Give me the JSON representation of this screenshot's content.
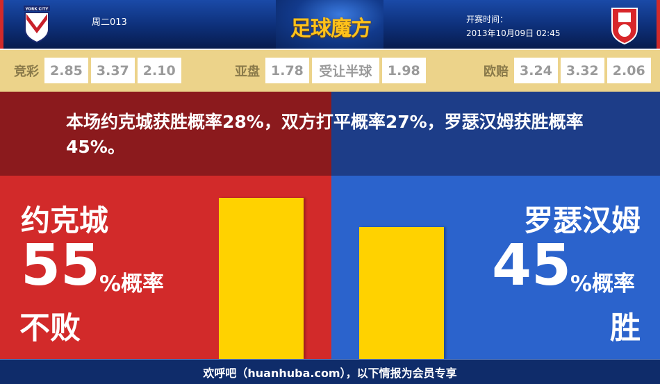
{
  "header": {
    "match_no": "周二013",
    "logo": "足球魔方",
    "kickoff_label": "开赛时间：",
    "kickoff_value": "2013年10月09日 02:45",
    "home_badge_text": "YORK CITY"
  },
  "odds": {
    "jingcai": {
      "label": "竞彩",
      "values": [
        "2.85",
        "3.37",
        "2.10"
      ]
    },
    "yapan": {
      "label": "亚盘",
      "values": [
        "1.78",
        "受让半球",
        "1.98"
      ]
    },
    "oupei": {
      "label": "欧赔",
      "values": [
        "3.24",
        "3.32",
        "2.06"
      ]
    }
  },
  "summary": "本场约克城获胜概率28%，双方打平概率27%，罗瑟汉姆获胜概率45%。",
  "home": {
    "name": "约克城",
    "percent": "55",
    "percent_value": 55,
    "suffix": "%概率",
    "outcome": "不败"
  },
  "away": {
    "name": "罗瑟汉姆",
    "percent": "45",
    "percent_value": 45,
    "suffix": "%概率",
    "outcome": "胜"
  },
  "colors": {
    "home_dark": "#8b1a1d",
    "home": "#d22a2a",
    "away_dark": "#1d3d88",
    "away": "#2b63cc",
    "bar": "#ffd200"
  },
  "footer": "欢呼吧（huanhuba.com），以下情报为会员专享"
}
